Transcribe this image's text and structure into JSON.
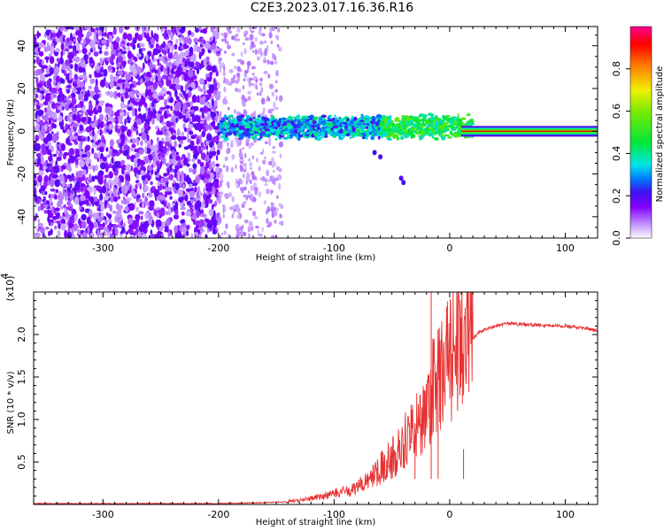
{
  "title": "C2E3.2023.017.16.36.R16",
  "chart_data": [
    {
      "type": "heatmap",
      "xlabel": "Height of straight line (km)",
      "ylabel": "Frequency (Hz)",
      "xlim": [
        -360,
        128
      ],
      "ylim": [
        -50,
        49
      ],
      "xticks": [
        -300,
        -200,
        -100,
        0,
        100
      ],
      "yticks": [
        -40,
        -20,
        0,
        20,
        40
      ],
      "colorbar": {
        "label": "Normalized spectral amplitude",
        "range": [
          0,
          1
        ],
        "ticks": [
          0.0,
          0.2,
          0.4,
          0.6,
          0.8
        ]
      },
      "regions": [
        {
          "x_range": [
            -360,
            -200
          ],
          "description_level": 0.1
        },
        {
          "x_range": [
            -200,
            -145
          ],
          "description_level": 0.05
        },
        {
          "x_range": [
            -200,
            20
          ],
          "freq_center": 2,
          "level": 0.3
        },
        {
          "x_range": [
            10,
            128
          ],
          "freq_center": 0,
          "level": 1.0
        }
      ]
    },
    {
      "type": "line",
      "xlabel": "Height of straight line (km)",
      "ylabel": "SNR (10 * v/v)",
      "y_multiplier": "(x10^4)",
      "xlim": [
        -360,
        128
      ],
      "ylim": [
        0,
        2.5
      ],
      "xticks": [
        -300,
        -200,
        -100,
        0,
        100
      ],
      "yticks": [
        0.5,
        1.0,
        1.5,
        2.0
      ],
      "series": [
        {
          "color": "#e83030",
          "x": [
            -360,
            -300,
            -250,
            -200,
            -170,
            -140,
            -125,
            -110,
            -100,
            -90,
            -80,
            -72,
            -65,
            -60,
            -55,
            -50,
            -45,
            -40,
            -35,
            -30,
            -25,
            -20,
            -15,
            -10,
            -5,
            0,
            5,
            10,
            15,
            20,
            25,
            30,
            40,
            50,
            60,
            80,
            100,
            120,
            128
          ],
          "y": [
            0.01,
            0.01,
            0.01,
            0.01,
            0.02,
            0.03,
            0.05,
            0.08,
            0.1,
            0.13,
            0.15,
            0.25,
            0.3,
            0.35,
            0.4,
            0.45,
            0.5,
            0.6,
            0.7,
            0.75,
            0.8,
            0.9,
            1.1,
            1.2,
            1.3,
            1.4,
            1.5,
            1.65,
            1.8,
            1.95,
            2.02,
            2.06,
            2.1,
            2.13,
            2.12,
            2.11,
            2.1,
            2.07,
            2.04
          ]
        }
      ]
    }
  ]
}
